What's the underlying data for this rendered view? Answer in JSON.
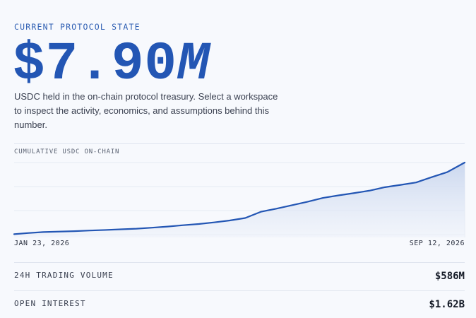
{
  "header": {
    "eyebrow": "CURRENT PROTOCOL STATE",
    "value_main": "$7.90",
    "value_suffix": "M",
    "description": "USDC held in the on-chain protocol treasury. Select a workspace to inspect the activity, economics, and assumptions behind this number."
  },
  "chart_data": {
    "type": "area",
    "title": "CUMULATIVE USDC ON-CHAIN",
    "x_start_label": "JAN 23, 2026",
    "x_end_label": "SEP 12, 2026",
    "x_range": [
      "2026-01-23",
      "2026-09-12"
    ],
    "ylim": [
      0,
      7.9
    ],
    "grid": true,
    "colors": {
      "line": "#2356b4",
      "fill_top": "#c9d6ee",
      "fill_bottom": "#eef2fa"
    },
    "series": [
      {
        "x": [
          "2026-01-23",
          "2026-01-30",
          "2026-02-07",
          "2026-02-15",
          "2026-02-23",
          "2026-03-03",
          "2026-03-11",
          "2026-03-19",
          "2026-03-27",
          "2026-04-04",
          "2026-04-12",
          "2026-04-20",
          "2026-04-28",
          "2026-05-06",
          "2026-05-14",
          "2026-05-22",
          "2026-05-30",
          "2026-06-07",
          "2026-06-15",
          "2026-06-23",
          "2026-07-01",
          "2026-07-09",
          "2026-07-17",
          "2026-07-25",
          "2026-08-02",
          "2026-08-10",
          "2026-08-18",
          "2026-08-26",
          "2026-09-03",
          "2026-09-12"
        ],
        "values": [
          0.05,
          0.17,
          0.28,
          0.33,
          0.38,
          0.45,
          0.51,
          0.58,
          0.65,
          0.76,
          0.88,
          1.03,
          1.16,
          1.34,
          1.55,
          1.82,
          2.5,
          2.84,
          3.22,
          3.6,
          4.02,
          4.3,
          4.55,
          4.82,
          5.2,
          5.45,
          5.72,
          6.3,
          6.85,
          7.9
        ]
      }
    ]
  },
  "stats": [
    {
      "label": "24H TRADING VOLUME",
      "value": "$586M"
    },
    {
      "label": "OPEN INTEREST",
      "value": "$1.62B"
    }
  ]
}
